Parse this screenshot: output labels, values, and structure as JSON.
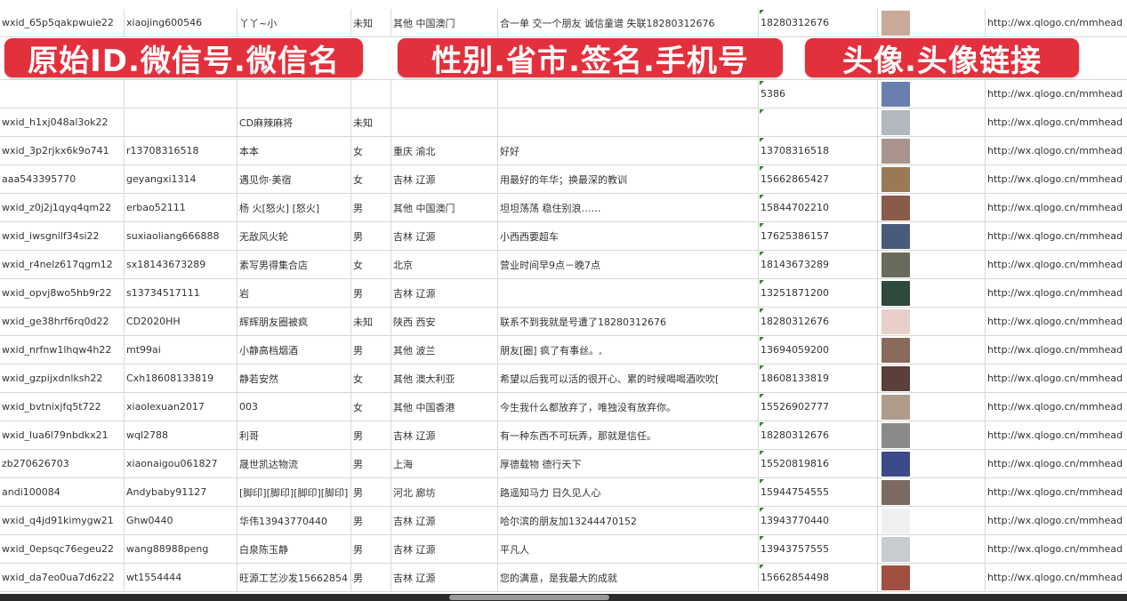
{
  "banners": [
    "原始ID.微信号.微信名",
    "性别.省市.签名.手机号",
    "头像.头像链接"
  ],
  "colors": {
    "banner": "#e3303d",
    "grid": "#d8d8d8",
    "comment_marker": "#2e8b2e"
  },
  "rows": [
    {
      "id": "wxid_65p5qakpwuie22",
      "wx": "xiaojing600546",
      "name": "丫丫~小",
      "gender": "未知",
      "region": "其他 中国澳门",
      "sign": "合一单 交一个朋友 诚信童谱 失联18280312676",
      "phone": "18280312676",
      "avatar": "#c9a99a",
      "link": "http://wx.qlogo.cn/mmhead"
    },
    {
      "id": "",
      "wx": "",
      "name": "",
      "gender": "",
      "region": "",
      "sign": "",
      "phone": "5386",
      "avatar": "#6a7fb0",
      "link": "http://wx.qlogo.cn/mmhead"
    },
    {
      "id": "wxid_h1xj048al3ok22",
      "wx": "",
      "name": "CD麻辣麻将",
      "gender": "未知",
      "region": "",
      "sign": "",
      "phone": "",
      "avatar": "#b0b8c0",
      "link": "http://wx.qlogo.cn/mmhead"
    },
    {
      "id": "wxid_3p2rjkx6k9o741",
      "wx": "r13708316518",
      "name": "本本",
      "gender": "女",
      "region": "重庆 渝北",
      "sign": "好好",
      "phone": "13708316518",
      "avatar": "#a8948a",
      "link": "http://wx.qlogo.cn/mmhead"
    },
    {
      "id": "aaa543395770",
      "wx": "geyangxi1314",
      "name": "遇见你·美宿",
      "gender": "女",
      "region": "吉林 辽源",
      "sign": "用最好的年华；换最深的教训",
      "phone": "15662865427",
      "avatar": "#9a7a55",
      "link": "http://wx.qlogo.cn/mmhead"
    },
    {
      "id": "wxid_z0j2j1qyq4qm22",
      "wx": "erbao52111",
      "name": "杨 火[怒火] [怒火]",
      "gender": "男",
      "region": "其他 中国澳门",
      "sign": "坦坦荡荡 稳住别浪……",
      "phone": "15844702210",
      "avatar": "#8a5a4a",
      "link": "http://wx.qlogo.cn/mmhead"
    },
    {
      "id": "wxid_iwsgnilf34si22",
      "wx": "suxiaoliang666888",
      "name": "无敌风火轮",
      "gender": "男",
      "region": "吉林 辽源",
      "sign": "小西西要超车",
      "phone": "17625386157",
      "avatar": "#4a5a7a",
      "link": "http://wx.qlogo.cn/mmhead"
    },
    {
      "id": "wxid_r4nelz617qgm12",
      "wx": "sx18143673289",
      "name": "素写男得集合店",
      "gender": "女",
      "region": "北京",
      "sign": "营业时间早9点－晚7点",
      "phone": "18143673289",
      "avatar": "#6a6a5a",
      "link": "http://wx.qlogo.cn/mmhead"
    },
    {
      "id": "wxid_opvj8wo5hb9r22",
      "wx": "s13734517111",
      "name": "岩",
      "gender": "男",
      "region": "吉林 辽源",
      "sign": "",
      "phone": "13251871200",
      "avatar": "#2f4a3a",
      "link": "http://wx.qlogo.cn/mmhead"
    },
    {
      "id": "wxid_ge38hrf6rq0d22",
      "wx": "CD2020HH",
      "name": "辉辉朋友圈被疯",
      "gender": "未知",
      "region": "陕西 西安",
      "sign": "联系不到我就是号遭了18280312676",
      "phone": "18280312676",
      "avatar": "#e8d0c8",
      "link": "http://wx.qlogo.cn/mmhead"
    },
    {
      "id": "wxid_nrfnw1lhqw4h22",
      "wx": "mt99ai",
      "name": "小静高档烟酒",
      "gender": "男",
      "region": "其他 波兰",
      "sign": "朋友[圈] 疯了有事丝。,",
      "phone": "13694059200",
      "avatar": "#8a6a5a",
      "link": "http://wx.qlogo.cn/mmhead"
    },
    {
      "id": "wxid_gzpijxdnlksh22",
      "wx": "Cxh18608133819",
      "name": "静若安然",
      "gender": "女",
      "region": "其他 澳大利亚",
      "sign": "希望以后我可以活的很开心、累的时候喝喝酒吹吹[",
      "phone": "18608133819",
      "avatar": "#5a4038",
      "link": "http://wx.qlogo.cn/mmhead"
    },
    {
      "id": "wxid_bvtnixjfq5t722",
      "wx": "xiaolexuan2017",
      "name": "003",
      "gender": "女",
      "region": "其他 中国香港",
      "sign": "今生我什么都放弃了，唯独没有放弃你。",
      "phone": "15526902777",
      "avatar": "#b09a8a",
      "link": "http://wx.qlogo.cn/mmhead"
    },
    {
      "id": "wxid_lua6l79nbdkx21",
      "wx": "wql2788",
      "name": "利哥",
      "gender": "男",
      "region": "吉林 辽源",
      "sign": "有一种东西不可玩弄，那就是信任。",
      "phone": "18280312676",
      "avatar": "#8a8a8a",
      "link": "http://wx.qlogo.cn/mmhead"
    },
    {
      "id": "zb270626703",
      "wx": "xiaonaigou061827",
      "name": "晟世凯达物流",
      "gender": "男",
      "region": "上海",
      "sign": "厚德载物 德行天下",
      "phone": "15520819816",
      "avatar": "#3a4a8a",
      "link": "http://wx.qlogo.cn/mmhead"
    },
    {
      "id": "andi100084",
      "wx": "Andybaby91127",
      "name": "[脚印][脚印][脚印][脚印]",
      "gender": "男",
      "region": "河北 廊坊",
      "sign": "路遥知马力 日久见人心",
      "phone": "15944754555",
      "avatar": "#7a6a60",
      "link": "http://wx.qlogo.cn/mmhead"
    },
    {
      "id": "wxid_q4jd91kimygw21",
      "wx": "Ghw0440",
      "name": "华伟13943770440",
      "gender": "男",
      "region": "吉林 辽源",
      "sign": "哈尔滨的朋友加13244470152",
      "phone": "13943770440",
      "avatar": "#f0f0f0",
      "link": "http://wx.qlogo.cn/mmhead"
    },
    {
      "id": "wxid_0epsqc76egeu22",
      "wx": "wang88988peng",
      "name": "白泉陈玉静",
      "gender": "男",
      "region": "吉林 辽源",
      "sign": "平凡人",
      "phone": "13943757555",
      "avatar": "#c8ccd0",
      "link": "http://wx.qlogo.cn/mmhead"
    },
    {
      "id": "wxid_da7eo0ua7d6z22",
      "wx": "wt1554444",
      "name": "旺源工艺沙发15662854",
      "gender": "男",
      "region": "吉林 辽源",
      "sign": "您的满意，是我最大的成就",
      "phone": "15662854498",
      "avatar": "#a05040",
      "link": "http://wx.qlogo.cn/mmhead"
    }
  ]
}
